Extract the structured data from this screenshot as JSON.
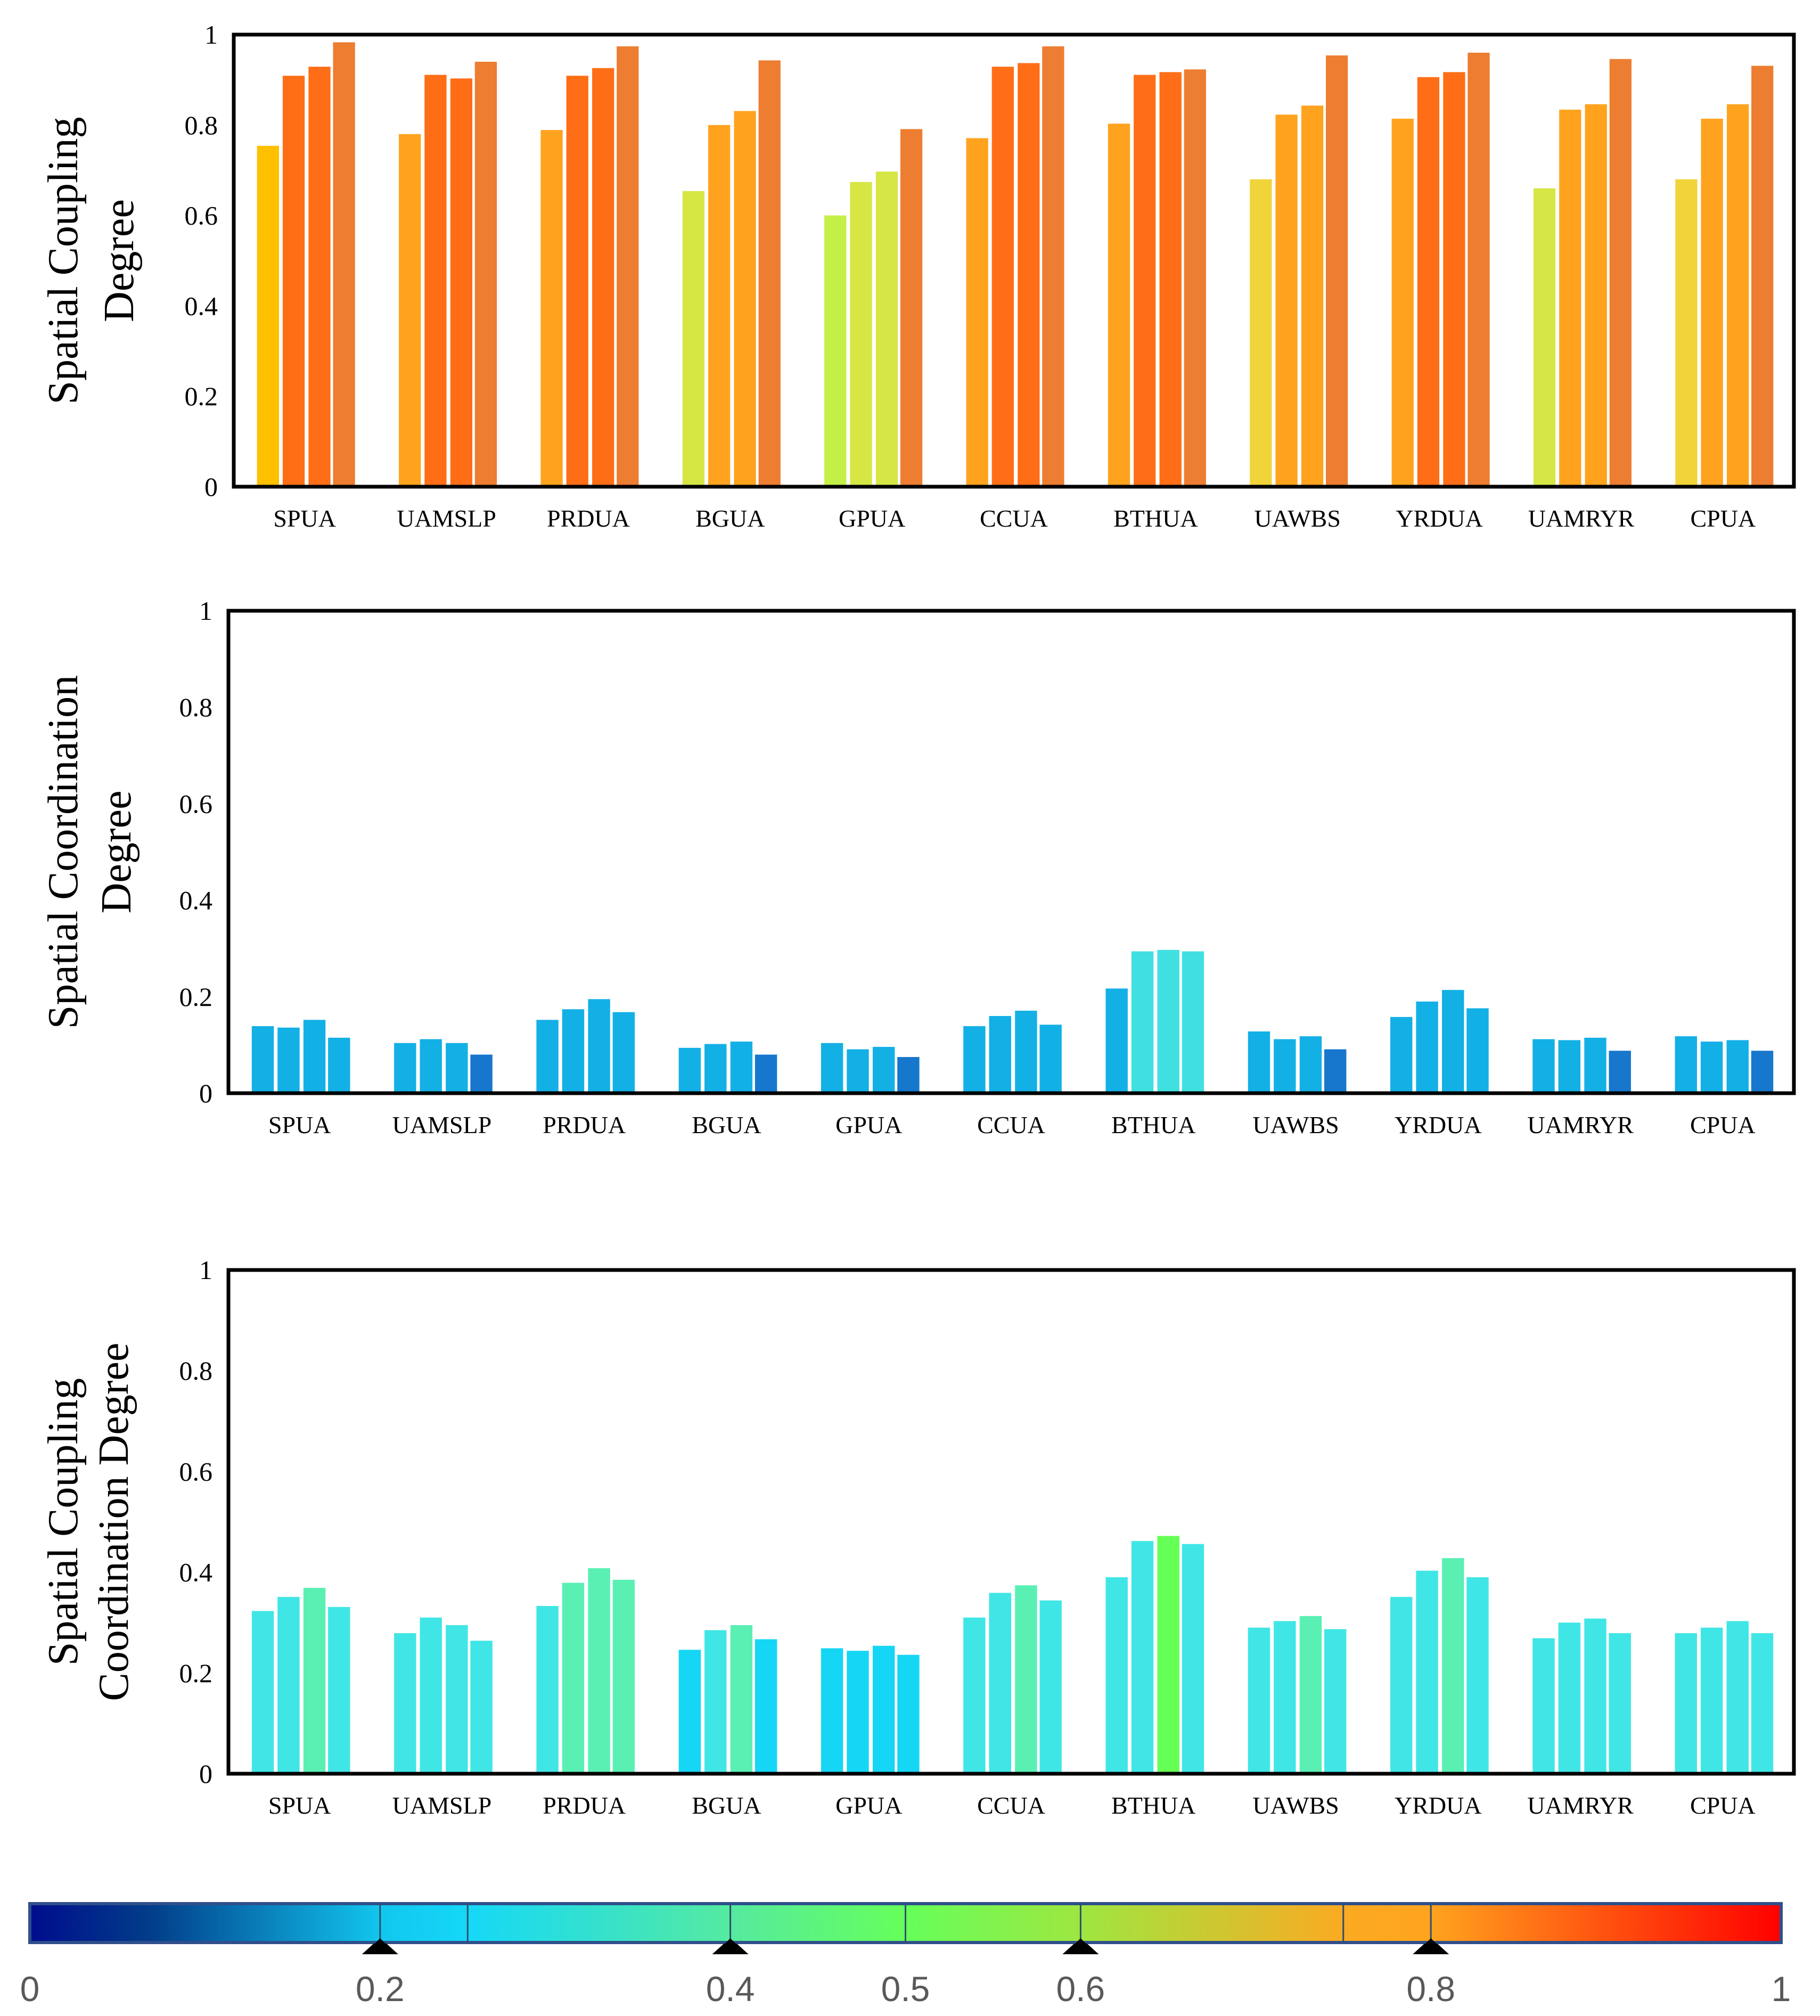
{
  "chart_data": [
    {
      "type": "bar",
      "title": "",
      "ylabel": [
        "Spatial Coupling",
        "Degree"
      ],
      "ylim": [
        0,
        1
      ],
      "yticks": [
        "0",
        "0.2",
        "0.4",
        "0.6",
        "0.8",
        "1"
      ],
      "categories": [
        "SPUA",
        "UAMSLP",
        "PRDUA",
        "BGUA",
        "GPUA",
        "CCUA",
        "BTHUA",
        "UAWBS",
        "YRDUA",
        "UAMRYR",
        "CPUA"
      ],
      "values": [
        [
          0.754,
          0.909,
          0.929,
          0.983
        ],
        [
          0.78,
          0.911,
          0.903,
          0.94
        ],
        [
          0.789,
          0.909,
          0.926,
          0.974
        ],
        [
          0.654,
          0.8,
          0.831,
          0.943
        ],
        [
          0.6,
          0.674,
          0.697,
          0.791
        ],
        [
          0.771,
          0.929,
          0.937,
          0.974
        ],
        [
          0.803,
          0.911,
          0.917,
          0.923
        ],
        [
          0.68,
          0.823,
          0.843,
          0.954
        ],
        [
          0.814,
          0.906,
          0.917,
          0.96
        ],
        [
          0.66,
          0.834,
          0.846,
          0.946
        ],
        [
          0.68,
          0.814,
          0.846,
          0.931
        ]
      ],
      "colors": [
        [
          "#ffc000",
          "#ff6e16",
          "#ff6e16",
          "#ed7d31"
        ],
        [
          "#ffa31e",
          "#ff6e16",
          "#ff6e16",
          "#ed7d31"
        ],
        [
          "#ffa31e",
          "#ff6e16",
          "#ff6e16",
          "#ed7d31"
        ],
        [
          "#d6e645",
          "#ffa31e",
          "#ffa31e",
          "#ed7d31"
        ],
        [
          "#c3ef47",
          "#d6e645",
          "#d6e645",
          "#ed7d31"
        ],
        [
          "#ffa31e",
          "#ff6e16",
          "#ff6e16",
          "#ed7d31"
        ],
        [
          "#ffa31e",
          "#ff6e16",
          "#ff6e16",
          "#ed7d31"
        ],
        [
          "#f0d43a",
          "#ffa31e",
          "#ffa31e",
          "#ed7d31"
        ],
        [
          "#ffa31e",
          "#ff6e16",
          "#ff6e16",
          "#ed7d31"
        ],
        [
          "#d6e645",
          "#ffa31e",
          "#ffa31e",
          "#ed7d31"
        ],
        [
          "#f0d43a",
          "#ffa31e",
          "#ffa31e",
          "#ed7d31"
        ]
      ]
    },
    {
      "type": "bar",
      "title": "",
      "ylabel": [
        "Spatial Coordination",
        "Degree"
      ],
      "ylim": [
        0,
        1
      ],
      "yticks": [
        "0",
        "0.2",
        "0.4",
        "0.6",
        "0.8",
        "1"
      ],
      "categories": [
        "SPUA",
        "UAMSLP",
        "PRDUA",
        "BGUA",
        "GPUA",
        "CCUA",
        "BTHUA",
        "UAWBS",
        "YRDUA",
        "UAMRYR",
        "CPUA"
      ],
      "values": [
        [
          0.139,
          0.136,
          0.152,
          0.115
        ],
        [
          0.104,
          0.112,
          0.104,
          0.08
        ],
        [
          0.152,
          0.174,
          0.195,
          0.168
        ],
        [
          0.094,
          0.102,
          0.107,
          0.08
        ],
        [
          0.104,
          0.091,
          0.096,
          0.075
        ],
        [
          0.139,
          0.16,
          0.171,
          0.142
        ],
        [
          0.217,
          0.294,
          0.297,
          0.294
        ],
        [
          0.128,
          0.112,
          0.118,
          0.091
        ],
        [
          0.158,
          0.19,
          0.214,
          0.176
        ],
        [
          0.112,
          0.11,
          0.115,
          0.088
        ],
        [
          0.118,
          0.107,
          0.11,
          0.088
        ]
      ],
      "colors": [
        [
          "#13b0e6",
          "#13b0e6",
          "#13b0e6",
          "#13b0e6"
        ],
        [
          "#13b0e6",
          "#13b0e6",
          "#13b0e6",
          "#1677cc"
        ],
        [
          "#13b0e6",
          "#13b0e6",
          "#13b0e6",
          "#13b0e6"
        ],
        [
          "#13b0e6",
          "#13b0e6",
          "#13b0e6",
          "#1677cc"
        ],
        [
          "#13b0e6",
          "#13b0e6",
          "#13b0e6",
          "#1677cc"
        ],
        [
          "#13b0e6",
          "#13b0e6",
          "#13b0e6",
          "#13b0e6"
        ],
        [
          "#13b0e6",
          "#40e0e0",
          "#40e0e0",
          "#40e0e0"
        ],
        [
          "#13b0e6",
          "#13b0e6",
          "#13b0e6",
          "#1677cc"
        ],
        [
          "#13b0e6",
          "#13b0e6",
          "#13b0e6",
          "#13b0e6"
        ],
        [
          "#13b0e6",
          "#13b0e6",
          "#13b0e6",
          "#1677cc"
        ],
        [
          "#13b0e6",
          "#13b0e6",
          "#13b0e6",
          "#1677cc"
        ]
      ]
    },
    {
      "type": "bar",
      "title": "",
      "ylabel": [
        "Spatial Coupling",
        "Coordination Degree"
      ],
      "ylim": [
        0,
        1
      ],
      "yticks": [
        "0",
        "0.2",
        "0.4",
        "0.6",
        "0.8",
        "1"
      ],
      "categories": [
        "SPUA",
        "UAMSLP",
        "PRDUA",
        "BGUA",
        "GPUA",
        "CCUA",
        "BTHUA",
        "UAWBS",
        "YRDUA",
        "UAMRYR",
        "CPUA"
      ],
      "values": [
        [
          0.323,
          0.351,
          0.369,
          0.331
        ],
        [
          0.279,
          0.31,
          0.295,
          0.264
        ],
        [
          0.333,
          0.379,
          0.408,
          0.385
        ],
        [
          0.246,
          0.285,
          0.295,
          0.267
        ],
        [
          0.249,
          0.244,
          0.254,
          0.236
        ],
        [
          0.31,
          0.359,
          0.374,
          0.344
        ],
        [
          0.39,
          0.462,
          0.472,
          0.456
        ],
        [
          0.29,
          0.303,
          0.313,
          0.287
        ],
        [
          0.351,
          0.403,
          0.428,
          0.39
        ],
        [
          0.269,
          0.3,
          0.308,
          0.279
        ],
        [
          0.279,
          0.29,
          0.303,
          0.279
        ]
      ],
      "colors": [
        [
          "#40e6e6",
          "#40e6e6",
          "#5af0b4",
          "#40e6e6"
        ],
        [
          "#40e6e6",
          "#40e6e6",
          "#40e6e6",
          "#40e6e6"
        ],
        [
          "#40e6e6",
          "#5af0b4",
          "#5af0b4",
          "#5af0b4"
        ],
        [
          "#15d6f5",
          "#40e6e6",
          "#5af0b4",
          "#15d6f5"
        ],
        [
          "#15d6f5",
          "#15d6f5",
          "#15d6f5",
          "#15d6f5"
        ],
        [
          "#40e6e6",
          "#40e6e6",
          "#5af0b4",
          "#40e6e6"
        ],
        [
          "#40e6e6",
          "#40e6e6",
          "#66ff55",
          "#40e6e6"
        ],
        [
          "#40e6e6",
          "#40e6e6",
          "#5af0b4",
          "#40e6e6"
        ],
        [
          "#40e6e6",
          "#40e6e6",
          "#5af0b4",
          "#40e6e6"
        ],
        [
          "#40e6e6",
          "#40e6e6",
          "#40e6e6",
          "#40e6e6"
        ],
        [
          "#40e6e6",
          "#40e6e6",
          "#40e6e6",
          "#40e6e6"
        ]
      ]
    }
  ],
  "colorbar": {
    "range": [
      0,
      1
    ],
    "tick_labels": [
      "0",
      "0.2",
      "0.4",
      "0.5",
      "0.6",
      "0.8",
      "1"
    ],
    "tick_values": [
      0,
      0.2,
      0.4,
      0.5,
      0.6,
      0.8,
      1
    ],
    "dividers": [
      0.2,
      0.25,
      0.4,
      0.5,
      0.6,
      0.75,
      0.8
    ],
    "markers": [
      0.2,
      0.4,
      0.6,
      0.8
    ],
    "stops": [
      [
        0,
        "#000c8c"
      ],
      [
        0.07,
        "#023e8a"
      ],
      [
        0.2,
        "#12c6ee"
      ],
      [
        0.25,
        "#15d8f8"
      ],
      [
        0.4,
        "#55eaa0"
      ],
      [
        0.5,
        "#66ff5a"
      ],
      [
        0.6,
        "#9ee640"
      ],
      [
        0.75,
        "#fbaa22"
      ],
      [
        0.8,
        "#ffa31e"
      ],
      [
        1,
        "#ff0000"
      ]
    ]
  }
}
